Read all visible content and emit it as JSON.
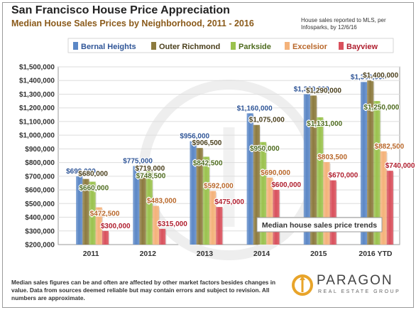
{
  "header": {
    "title": "San Francisco House Price Appreciation",
    "subtitle": "Median House Sales Prices by Neighborhood, 2011 - 2016",
    "note": "House sales reported to MLS, per Infosparks, by 12/6/16"
  },
  "footnote": "Median sales figures can be and often are affected by other market factors besides changes in value. Data from sources deemed reliable but may contain errors and subject to revision. All numbers are approximate.",
  "logo": {
    "name": "PARAGON",
    "tagline": "REAL ESTATE GROUP"
  },
  "chart_data": {
    "type": "bar",
    "categories": [
      "2011",
      "2012",
      "2013",
      "2014",
      "2015",
      "2016 YTD"
    ],
    "series": [
      {
        "name": "Bernal Heights",
        "color": "#5b87c6",
        "values": [
          699000,
          775000,
          956000,
          1160000,
          1300000,
          1389000
        ],
        "labels": [
          "$699,000",
          "$775,000",
          "$956,000",
          "$1,160,000",
          "$1,300,000",
          "$1,389,000"
        ]
      },
      {
        "name": "Outer Richmond",
        "color": "#8c7a3e",
        "values": [
          680000,
          719000,
          906500,
          1075000,
          1290000,
          1400000
        ],
        "labels": [
          "$680,000",
          "$719,000",
          "$906,500",
          "$1,075,000",
          "$1,290,000",
          "$1,400,000"
        ]
      },
      {
        "name": "Parkside",
        "color": "#9ac24d",
        "values": [
          660000,
          748500,
          842500,
          950000,
          1131000,
          1250000
        ],
        "labels": [
          "$660,000",
          "$748,500",
          "$842,500",
          "$950,000",
          "$1,131,000",
          "$1,250,000"
        ]
      },
      {
        "name": "Excelsior",
        "color": "#f4b27a",
        "values": [
          472500,
          483000,
          592000,
          690000,
          803500,
          882500
        ],
        "labels": [
          "$472,500",
          "$483,000",
          "$592,000",
          "$690,000",
          "$803,500",
          "$882,500"
        ]
      },
      {
        "name": "Bayview",
        "color": "#d9505c",
        "values": [
          300000,
          315000,
          475000,
          600000,
          670000,
          740000
        ],
        "labels": [
          "$300,000",
          "$315,000",
          "$475,000",
          "$600,000",
          "$670,000",
          "$740,000"
        ]
      }
    ],
    "y_tick_labels": [
      "$200,000",
      "$300,000",
      "$400,000",
      "$500,000",
      "$600,000",
      "$700,000",
      "$800,000",
      "$900,000",
      "$1,000,000",
      "$1,100,000",
      "$1,200,000",
      "$1,300,000",
      "$1,400,000",
      "$1,500,000"
    ],
    "ylim": [
      200000,
      1500000
    ],
    "y_step": 100000,
    "grid": true,
    "legend": "top",
    "annotation": "Median house sales price trends",
    "label_colors": [
      "#2f5597",
      "#4a3f1c",
      "#4e6b1e",
      "#b8672a",
      "#b02030"
    ]
  }
}
